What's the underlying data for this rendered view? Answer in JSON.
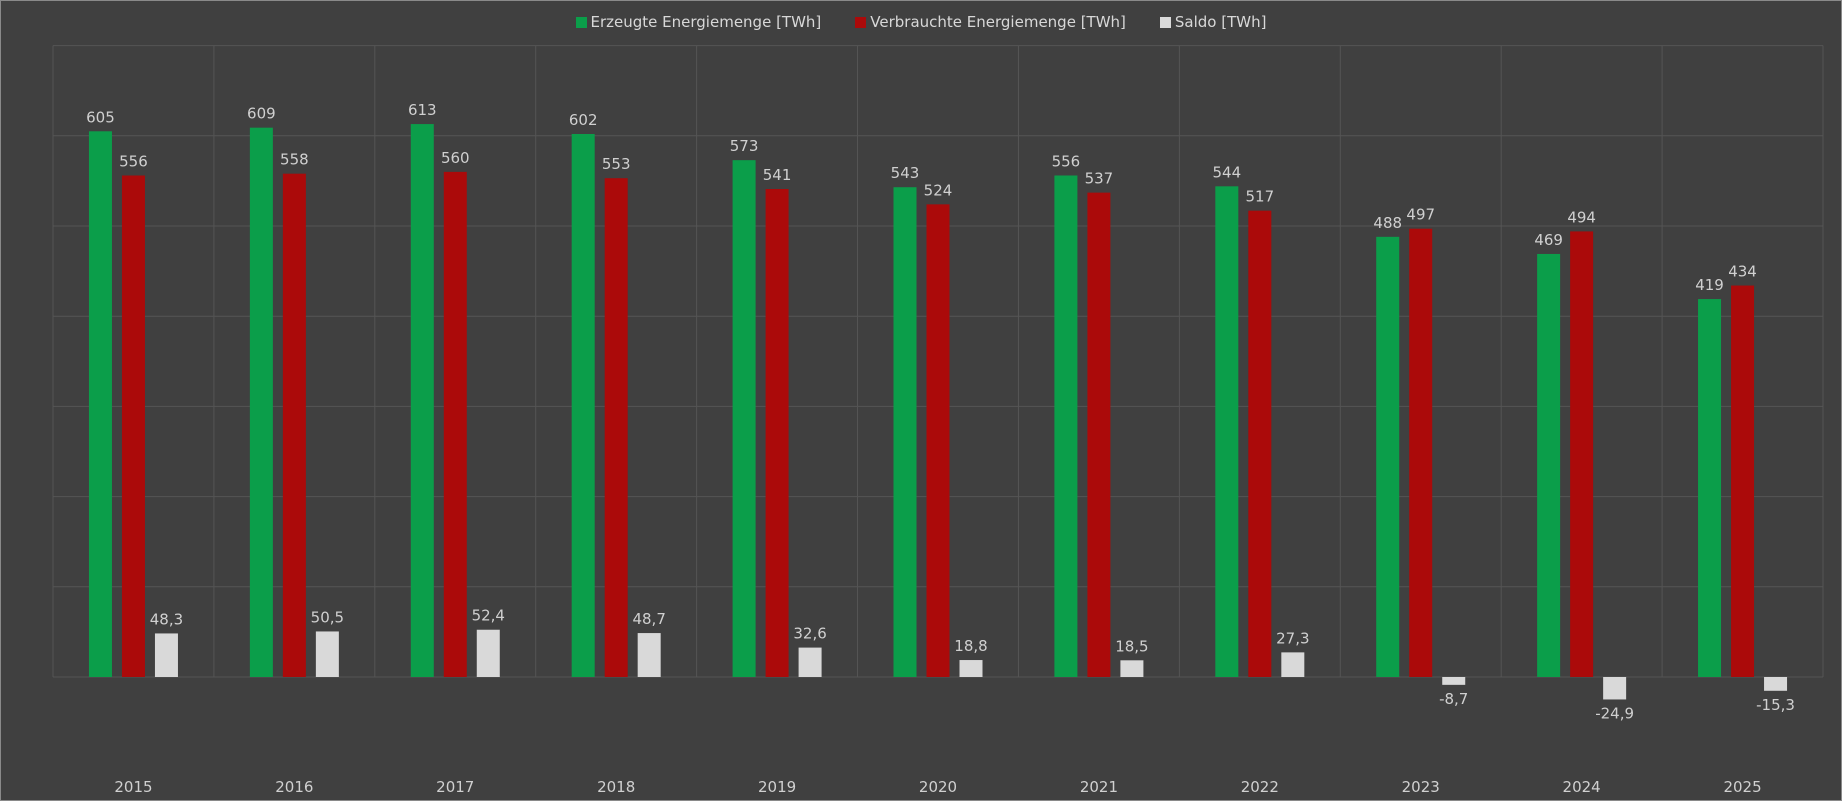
{
  "chart_data": {
    "type": "bar",
    "title": "",
    "xlabel": "",
    "ylabel": "",
    "ylim": [
      -50,
      700
    ],
    "grid": true,
    "legend_position": "top-center",
    "categories": [
      "2015",
      "2016",
      "2017",
      "2018",
      "2019",
      "2020",
      "2021",
      "2022",
      "2023",
      "2024",
      "2025"
    ],
    "series": [
      {
        "name": "Erzeugte Energiemenge [TWh]",
        "color": "#0b9e4a",
        "values": [
          605,
          609,
          613,
          602,
          573,
          543,
          556,
          544,
          488,
          469,
          419
        ],
        "labels": [
          "605",
          "609",
          "613",
          "602",
          "573",
          "543",
          "556",
          "544",
          "488",
          "469",
          "419"
        ]
      },
      {
        "name": "Verbrauchte Energiemenge [TWh]",
        "color": "#ab0a0a",
        "values": [
          556,
          558,
          560,
          553,
          541,
          524,
          537,
          517,
          497,
          494,
          434
        ],
        "labels": [
          "556",
          "558",
          "560",
          "553",
          "541",
          "524",
          "537",
          "517",
          "497",
          "494",
          "434"
        ]
      },
      {
        "name": "Saldo [TWh]",
        "color": "#d9d9d9",
        "values": [
          48.3,
          50.5,
          52.4,
          48.7,
          32.6,
          18.8,
          18.5,
          27.3,
          -8.7,
          -24.9,
          -15.3
        ],
        "labels": [
          "48,3",
          "50,5",
          "52,4",
          "48,7",
          "32,6",
          "18,8",
          "18,5",
          "27,3",
          "-8,7",
          "-24,9",
          "-15,3"
        ]
      }
    ]
  }
}
